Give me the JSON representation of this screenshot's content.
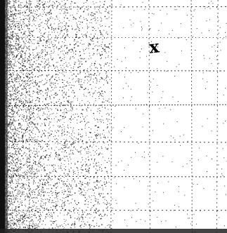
{
  "scan": {
    "ink_color": "#000000",
    "paper_color": "#ffffff",
    "grid": true,
    "grid_style": "dotted",
    "mark_text": "x"
  }
}
